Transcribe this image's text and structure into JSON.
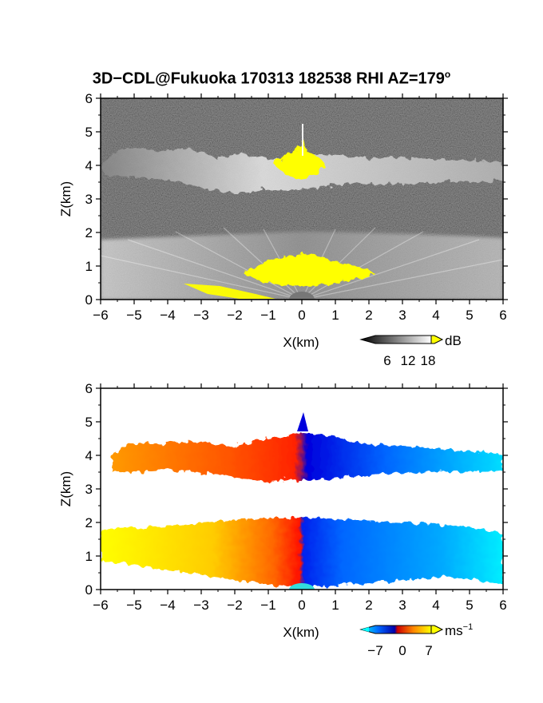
{
  "title": {
    "main": "3D−CDL@Fukuoka 170313 182538 RHI AZ=179",
    "superscript": "o"
  },
  "chart_data": [
    {
      "type": "heatmap",
      "panel": "top",
      "variable": "reflectivity (grayscale, saturated in yellow)",
      "xlabel": "X(km)",
      "ylabel": "Z(km)",
      "xlim": [
        -6,
        6
      ],
      "ylim": [
        0,
        6
      ],
      "xticks": [
        "−6",
        "−5",
        "−4",
        "−3",
        "−2",
        "−1",
        "0",
        "1",
        "2",
        "3",
        "4",
        "5",
        "6"
      ],
      "yticks": [
        "0",
        "1",
        "2",
        "3",
        "4",
        "5",
        "6"
      ],
      "colorbar": {
        "unit": "dB",
        "ticks": [
          "6",
          "12",
          "18"
        ],
        "range": [
          0,
          20
        ],
        "saturation_color": "#ffff00"
      },
      "features": [
        {
          "name": "upper cloud layer",
          "z_range_km": [
            3.3,
            4.5
          ]
        },
        {
          "name": "boundary layer",
          "z_range_km": [
            0,
            2.0
          ]
        },
        {
          "name": "saturated core near vertical",
          "x_km": 0,
          "z_km": [
            0.6,
            4.6
          ]
        }
      ]
    },
    {
      "type": "heatmap",
      "panel": "bottom",
      "variable": "radial velocity",
      "xlabel": "X(km)",
      "ylabel": "Z(km)",
      "xlim": [
        -6,
        6
      ],
      "ylim": [
        0,
        6
      ],
      "xticks": [
        "−6",
        "−5",
        "−4",
        "−3",
        "−2",
        "−1",
        "0",
        "1",
        "2",
        "3",
        "4",
        "5",
        "6"
      ],
      "yticks": [
        "0",
        "1",
        "2",
        "3",
        "4",
        "5",
        "6"
      ],
      "colorbar": {
        "unit": "ms",
        "unit_exponent": "−1",
        "ticks": [
          "−7",
          "0",
          "7"
        ],
        "range": [
          -7,
          7
        ]
      },
      "features": [
        {
          "name": "upper cloud layer",
          "x_lt_0": "positive (orange/red)",
          "x_gt_0": "negative (blue/cyan)"
        },
        {
          "name": "boundary layer",
          "x_lt_0": "positive (yellow/orange)",
          "x_gt_0": "negative (blue/cyan)"
        }
      ]
    }
  ],
  "colors": {
    "saturation": "#ffff00",
    "velocity_stops": [
      "#00ffff",
      "#0044ff",
      "#0000cc",
      "#ff0000",
      "#ff9900",
      "#ffff00"
    ]
  }
}
